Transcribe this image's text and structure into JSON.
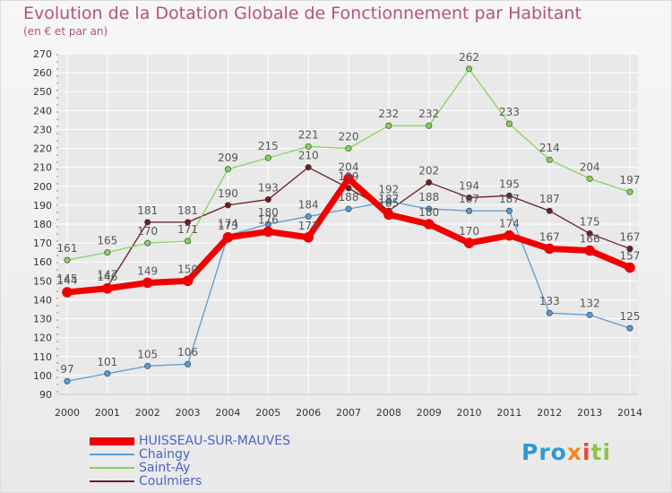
{
  "header": {
    "title": "Evolution de la Dotation Globale de Fonctionnement par Habitant",
    "subtitle": "(en € et par an)"
  },
  "logo": {
    "text": "Proxiti"
  },
  "colors": {
    "title": "#b5527e",
    "axis_text": "#333333",
    "grid": "#ffffff",
    "legend_text": "#4d63c8"
  },
  "chart_data": {
    "type": "line",
    "x": [
      "2000",
      "2001",
      "2002",
      "2003",
      "2004",
      "2005",
      "2006",
      "2007",
      "2008",
      "2009",
      "2010",
      "2011",
      "2012",
      "2013",
      "2014"
    ],
    "yticks": [
      90,
      100,
      110,
      120,
      130,
      140,
      150,
      160,
      170,
      180,
      190,
      200,
      210,
      220,
      230,
      240,
      250,
      260,
      270
    ],
    "ylim": [
      90,
      270
    ],
    "grid": true,
    "legend_position": "bottom-left",
    "series": [
      {
        "name": "Coulmiers",
        "color": "#6b1e24",
        "width": 1.3,
        "values": [
          145,
          147,
          181,
          181,
          190,
          193,
          210,
          199,
          187,
          202,
          194,
          195,
          187,
          175,
          167
        ],
        "labels": [
          "145",
          "147",
          "181",
          "181",
          "190",
          "193",
          "210",
          "199",
          "187",
          "202",
          "194",
          "195",
          "187",
          "175",
          "167"
        ]
      },
      {
        "name": "Saint-Ay",
        "color": "#86d45a",
        "width": 1.3,
        "values": [
          161,
          165,
          170,
          171,
          209,
          215,
          221,
          220,
          232,
          232,
          262,
          233,
          214,
          204,
          197
        ],
        "labels": [
          "161",
          "165",
          "170",
          "171",
          "209",
          "215",
          "221",
          "220",
          "232",
          "232",
          "262",
          "233",
          "214",
          "204",
          "197"
        ]
      },
      {
        "name": "Chaingy",
        "color": "#5b9bd5",
        "width": 1.3,
        "values": [
          97,
          101,
          105,
          106,
          174,
          180,
          184,
          188,
          192,
          188,
          187,
          187,
          133,
          132,
          125
        ],
        "labels": [
          "97",
          "101",
          "105",
          "106",
          "174",
          "180",
          "184",
          "188",
          "192",
          "188",
          "187",
          "187",
          "133",
          "132",
          "125"
        ]
      },
      {
        "name": "HUISSEAU-SUR-MAUVES",
        "color": "#f00000",
        "width": 7,
        "values": [
          144,
          146,
          149,
          150,
          173,
          176,
          173,
          204,
          185,
          180,
          170,
          174,
          167,
          166,
          157
        ],
        "labels": [
          "144",
          "146",
          "149",
          "150",
          "173",
          "176",
          "173",
          "204",
          "185",
          "180",
          "170",
          "174",
          "167",
          "166",
          "157"
        ]
      }
    ]
  },
  "legend": [
    {
      "name": "HUISSEAU-SUR-MAUVES",
      "color": "#f00000",
      "thickness": 9
    },
    {
      "name": "Chaingy",
      "color": "#5b9bd5",
      "thickness": 2
    },
    {
      "name": "Saint-Ay",
      "color": "#86d45a",
      "thickness": 2
    },
    {
      "name": "Coulmiers",
      "color": "#6b1e24",
      "thickness": 2
    }
  ]
}
